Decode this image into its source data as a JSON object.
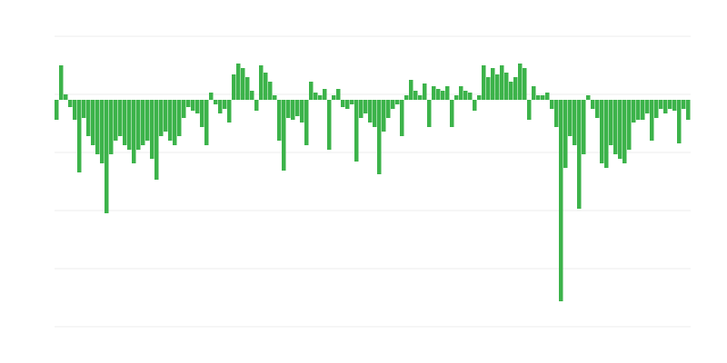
{
  "chart_data": {
    "type": "bar",
    "color": "#3cb34a",
    "grid": true,
    "ylim": [
      -250,
      70
    ],
    "yticks": [
      70,
      6,
      -58,
      -122,
      -186,
      -250
    ],
    "values": [
      -22,
      38,
      6,
      -8,
      -22,
      -80,
      -20,
      -40,
      -50,
      -60,
      -70,
      -125,
      -60,
      -45,
      -40,
      -50,
      -55,
      -70,
      -55,
      -50,
      -45,
      -65,
      -88,
      -40,
      -35,
      -45,
      -50,
      -40,
      -20,
      -8,
      -12,
      -15,
      -30,
      -50,
      8,
      -5,
      -15,
      -10,
      -25,
      28,
      40,
      35,
      25,
      10,
      -12,
      38,
      30,
      20,
      5,
      -45,
      -78,
      -20,
      -22,
      -18,
      -25,
      -50,
      20,
      8,
      5,
      12,
      -55,
      5,
      12,
      -8,
      -10,
      -5,
      -68,
      -20,
      -15,
      -25,
      -30,
      -82,
      -35,
      -20,
      -10,
      -5,
      -40,
      5,
      22,
      10,
      5,
      18,
      -30,
      15,
      12,
      10,
      15,
      -30,
      5,
      15,
      10,
      8,
      -12,
      5,
      38,
      25,
      35,
      28,
      38,
      30,
      20,
      25,
      40,
      35,
      -22,
      15,
      5,
      5,
      8,
      -10,
      -30,
      -222,
      -75,
      -40,
      -50,
      -120,
      -60,
      5,
      -10,
      -20,
      -70,
      -75,
      -50,
      -60,
      -65,
      -70,
      -55,
      -25,
      -22,
      -22,
      -15,
      -45,
      -20,
      -10,
      -15,
      -10,
      -12,
      -48,
      -10,
      -22
    ]
  }
}
